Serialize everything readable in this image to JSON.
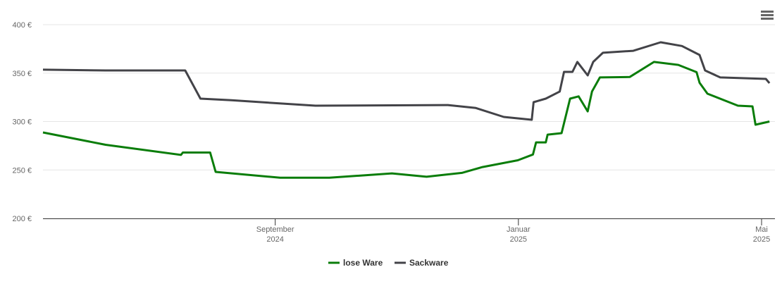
{
  "chart_data": {
    "type": "line",
    "xlim": [
      5.18,
      17.22
    ],
    "xticks": [
      {
        "value": 9,
        "label": "September 2024"
      },
      {
        "value": 13,
        "label": "Januar 2025"
      },
      {
        "value": 17,
        "label": "Mai 2025"
      }
    ],
    "ylim": [
      200,
      400
    ],
    "yticks": [
      {
        "value": 200,
        "label": "200 €"
      },
      {
        "value": 250,
        "label": "250 €"
      },
      {
        "value": 300,
        "label": "300 €"
      },
      {
        "value": 350,
        "label": "350 €"
      },
      {
        "value": 400,
        "label": "400 €"
      }
    ],
    "grid": true,
    "legend": "bottom",
    "series": [
      {
        "name": "lose Ware",
        "color": "#0a7d0a",
        "x": [
          5.18,
          6.21,
          7.45,
          7.48,
          7.93,
          8.02,
          9.08,
          9.89,
          10.92,
          11.49,
          12.07,
          12.41,
          12.99,
          13.24,
          13.29,
          13.45,
          13.48,
          13.71,
          13.85,
          13.99,
          14.14,
          14.21,
          14.34,
          14.83,
          15.23,
          15.63,
          15.93,
          15.98,
          16.11,
          16.61,
          16.85,
          16.9,
          17.13
        ],
        "values": [
          288.7,
          276,
          265.5,
          268,
          268,
          248,
          242,
          242,
          246.5,
          243,
          247,
          253,
          260,
          266,
          278.5,
          278.5,
          286.5,
          288,
          323.6,
          326,
          310.5,
          331,
          345.5,
          346,
          361.5,
          358.5,
          351,
          340,
          328.7,
          316.4,
          315.6,
          296.7,
          300
        ]
      },
      {
        "name": "Sackware",
        "color": "#434348",
        "x": [
          5.18,
          6.21,
          7.52,
          7.77,
          8.28,
          9.66,
          11.84,
          12.3,
          12.76,
          13.22,
          13.25,
          13.45,
          13.68,
          13.75,
          13.89,
          13.97,
          14.14,
          14.23,
          14.39,
          14.89,
          15.34,
          15.69,
          15.98,
          16.07,
          16.32,
          17.07,
          17.13
        ],
        "values": [
          353.5,
          352.7,
          352.7,
          323.6,
          322,
          316.4,
          317,
          314,
          304.7,
          301.8,
          320,
          323.6,
          331,
          351.3,
          351.3,
          361.5,
          347.6,
          361.5,
          371,
          373,
          381.8,
          378,
          368.7,
          352.7,
          345.5,
          344,
          339.6
        ]
      }
    ]
  }
}
